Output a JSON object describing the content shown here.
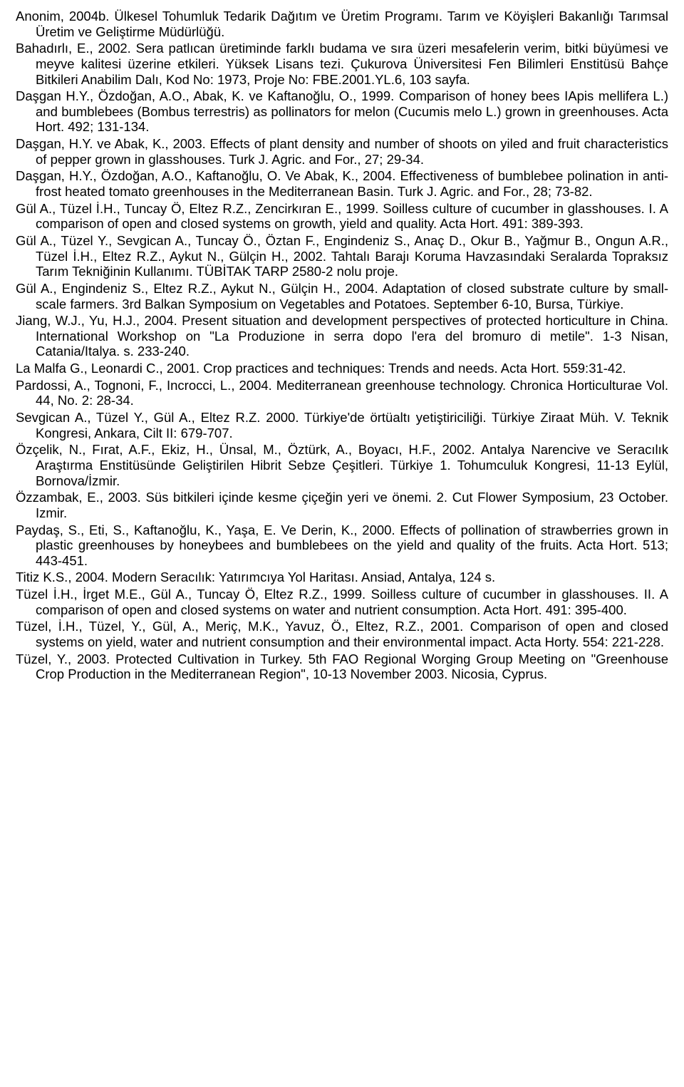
{
  "references": [
    "Anonim, 2004b. Ülkesel Tohumluk Tedarik Dağıtım ve Üretim Programı. Tarım ve Köyişleri Bakanlığı Tarımsal Üretim ve Geliştirme Müdürlüğü.",
    "Bahadırlı, E., 2002. Sera patlıcan üretiminde farklı budama ve sıra üzeri mesafelerin verim, bitki büyümesi ve meyve kalitesi üzerine etkileri. Yüksek Lisans tezi. Çukurova Üniversitesi Fen Bilimleri Enstitüsü Bahçe Bitkileri Anabilim Dalı, Kod No: 1973, Proje No: FBE.2001.YL.6, 103 sayfa.",
    "Daşgan H.Y., Özdoğan, A.O., Abak, K. ve Kaftanoğlu, O., 1999. Comparison of honey bees IApis mellifera L.) and bumblebees (Bombus terrestris) as pollinators for melon (Cucumis melo L.) grown in greenhouses. Acta Hort. 492; 131-134.",
    "Daşgan, H.Y. ve Abak, K., 2003. Effects of plant density and number of shoots on yiled and fruit characteristics of pepper grown in glasshouses. Turk J. Agric. and For., 27; 29-34.",
    "Daşgan, H.Y., Özdoğan, A.O., Kaftanoğlu, O. Ve Abak, K., 2004. Effectiveness of bumblebee polination in anti-frost heated tomato greenhouses in the Mediterranean Basin. Turk J. Agric. and For., 28; 73-82.",
    "Gül A., Tüzel İ.H., Tuncay Ö, Eltez R.Z., Zencirkıran E., 1999. Soilless culture of cucumber in glasshouses. I. A comparison of open and closed systems on growth, yield and quality. Acta Hort. 491: 389-393.",
    "Gül A., Tüzel Y., Sevgican A., Tuncay Ö., Öztan F., Engindeniz S., Anaç D., Okur B., Yağmur B., Ongun A.R., Tüzel İ.H., Eltez R.Z., Aykut N., Gülçin H., 2002. Tahtalı Barajı Koruma Havzasındaki Seralarda Topraksız Tarım Tekniğinin Kullanımı. TÜBİTAK TARP 2580-2 nolu proje.",
    "Gül A., Engindeniz S., Eltez R.Z., Aykut N., Gülçin H., 2004. Adaptation of closed substrate culture by small-scale farmers. 3rd Balkan Symposium on Vegetables and Potatoes. September 6-10, Bursa, Türkiye.",
    "Jiang, W.J., Yu, H.J., 2004. Present situation and development perspectives of protected horticulture in China. International Workshop on \"La Produzione in serra dopo l'era del bromuro di metile\". 1-3 Nisan, Catania/Italya. s. 233-240.",
    "La Malfa G., Leonardi C., 2001. Crop practices and techniques: Trends and needs. Acta Hort. 559:31-42.",
    "Pardossi, A., Tognoni, F., Incrocci, L., 2004. Mediterranean greenhouse technology. Chronica Horticulturae Vol. 44, No. 2: 28-34.",
    "Sevgican A., Tüzel Y., Gül A., Eltez R.Z. 2000. Türkiye'de örtüaltı yetiştiriciliği. Türkiye Ziraat Müh. V. Teknik Kongresi, Ankara, Cilt II: 679-707.",
    "Özçelik, N., Fırat, A.F., Ekiz, H., Ünsal, M., Öztürk, A., Boyacı, H.F., 2002. Antalya Narencive ve Seracılık Araştırma Enstitüsünde Geliştirilen Hibrit Sebze Çeşitleri. Türkiye 1. Tohumculuk Kongresi, 11-13 Eylül, Bornova/İzmir.",
    "Özzambak, E., 2003. Süs bitkileri içinde kesme çiçeğin yeri ve önemi. 2. Cut Flower Symposium, 23 October. Izmir.",
    "Paydaş, S., Eti, S., Kaftanoğlu, K., Yaşa, E. Ve Derin, K., 2000. Effects of pollination of strawberries grown in plastic greenhouses by honeybees and bumblebees on the yield and quality of the fruits. Acta Hort. 513; 443-451.",
    "Titiz K.S., 2004. Modern Seracılık: Yatırımcıya Yol Haritası. Ansiad, Antalya, 124 s.",
    "Tüzel İ.H., İrget M.E., Gül A., Tuncay Ö, Eltez R.Z., 1999. Soilless culture of cucumber in glasshouses. II. A comparison of open and closed systems on water and nutrient consumption. Acta Hort. 491: 395-400.",
    "Tüzel, İ.H., Tüzel, Y., Gül, A., Meriç, M.K., Yavuz, Ö., Eltez, R.Z., 2001. Comparison of open and closed systems on yield, water and nutrient consumption and their environmental impact. Acta Horty. 554: 221-228.",
    "Tüzel, Y., 2003. Protected Cultivation in Turkey. 5th FAO Regional Worging Group Meeting on \"Greenhouse Crop Production in the Mediterranean Region\", 10-13 November 2003. Nicosia, Cyprus."
  ]
}
